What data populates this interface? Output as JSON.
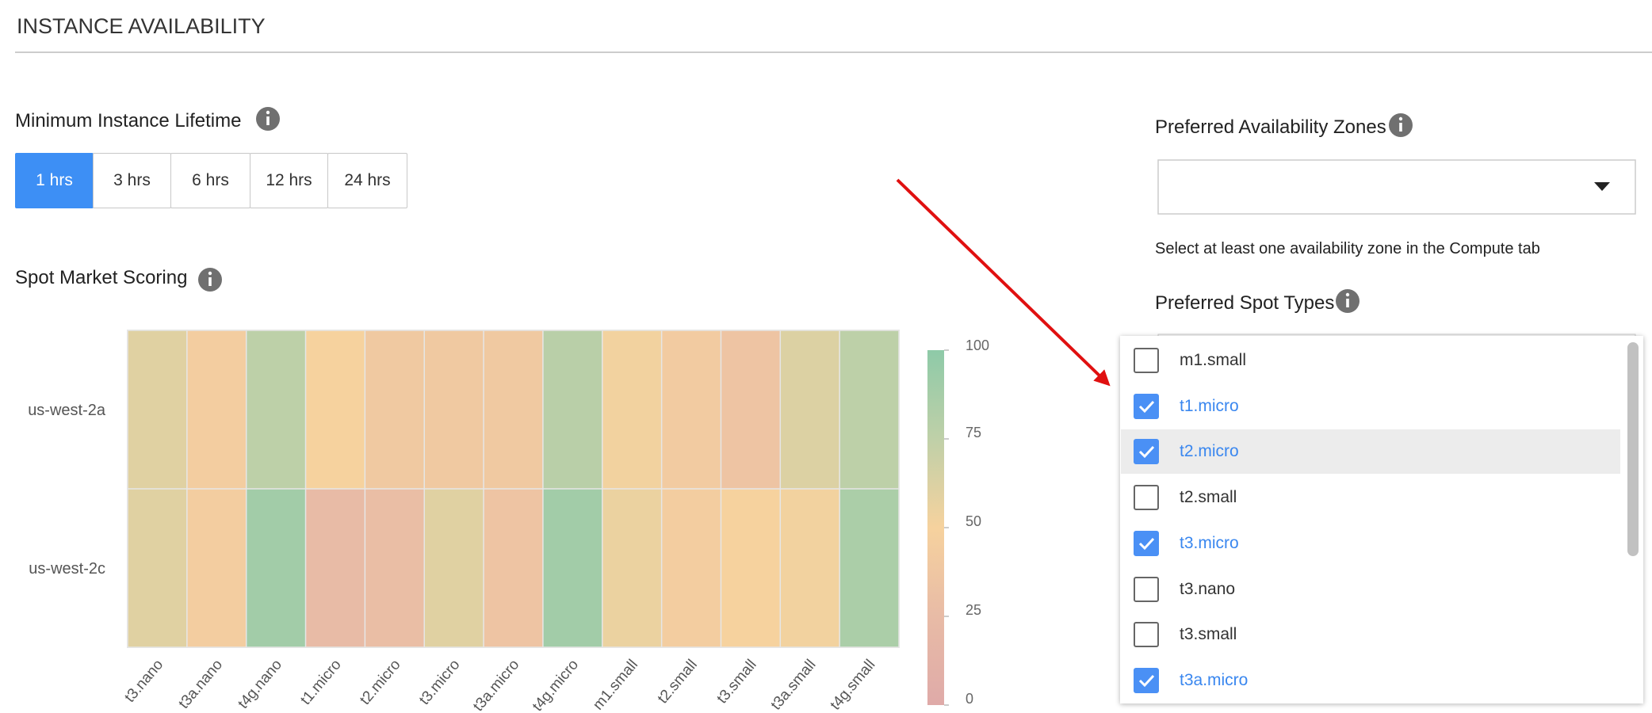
{
  "header": {
    "title": "INSTANCE AVAILABILITY"
  },
  "lifetime": {
    "label": "Minimum Instance Lifetime",
    "options": [
      {
        "label": "1 hrs",
        "selected": true
      },
      {
        "label": "3 hrs",
        "selected": false
      },
      {
        "label": "6 hrs",
        "selected": false
      },
      {
        "label": "12 hrs",
        "selected": false
      },
      {
        "label": "24 hrs",
        "selected": false
      }
    ]
  },
  "chart_data": {
    "type": "heatmap",
    "title": "Spot Market Scoring",
    "categories": [
      "t3.nano",
      "t3a.nano",
      "t4g.nano",
      "t1.micro",
      "t2.micro",
      "t3.micro",
      "t3a.micro",
      "t4g.micro",
      "m1.small",
      "t2.small",
      "t3.small",
      "t3a.small",
      "t4g.small"
    ],
    "y_categories": [
      "us-west-2a",
      "us-west-2c"
    ],
    "values": [
      [
        60,
        45,
        76,
        50,
        40,
        40,
        40,
        78,
        52,
        42,
        35,
        62,
        76
      ],
      [
        60,
        45,
        90,
        25,
        28,
        60,
        35,
        90,
        55,
        45,
        50,
        52,
        85
      ]
    ],
    "zlim": [
      0,
      100
    ],
    "zticks": [
      0,
      25,
      50,
      75,
      100
    ],
    "colorscale": [
      "#dfaaa8",
      "#e8bba6",
      "#f6d29e",
      "#bfd0a8",
      "#8ecaa8"
    ]
  },
  "zones": {
    "label": "Preferred Availability Zones",
    "hint": "Select at least one availability zone in the Compute tab"
  },
  "spot_types": {
    "label": "Preferred Spot Types",
    "items": [
      {
        "label": "m1.small",
        "checked": false
      },
      {
        "label": "t1.micro",
        "checked": true
      },
      {
        "label": "t2.micro",
        "checked": true,
        "highlighted": true
      },
      {
        "label": "t2.small",
        "checked": false
      },
      {
        "label": "t3.micro",
        "checked": true
      },
      {
        "label": "t3.nano",
        "checked": false
      },
      {
        "label": "t3.small",
        "checked": false
      },
      {
        "label": "t3a.micro",
        "checked": true
      }
    ]
  }
}
